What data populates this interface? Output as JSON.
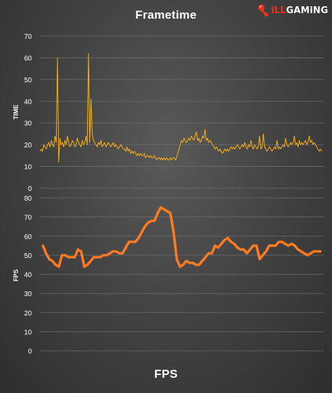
{
  "logo": {
    "accent": "iLL",
    "rest": "GAMiNG"
  },
  "colors": {
    "frametime_line": "#ffb400",
    "fps_line": "#ff7b22",
    "grid": "#6e6e6e",
    "tick_text": "#ffffff"
  },
  "chart_data": [
    {
      "type": "line",
      "title": "Frametime",
      "xlabel": "",
      "ylabel": "TIME",
      "ylim": [
        0,
        70
      ],
      "yticks": [
        0,
        10,
        20,
        30,
        40,
        50,
        60,
        70
      ],
      "grid": true,
      "legend": "none",
      "series": [
        {
          "values": [
            17,
            18,
            17,
            20,
            19,
            18,
            20,
            21,
            19,
            22,
            20,
            19,
            24,
            21,
            60,
            12,
            23,
            20,
            21,
            19,
            22,
            20,
            24,
            21,
            19,
            20,
            22,
            21,
            19,
            20,
            23,
            21,
            20,
            19,
            22,
            20,
            21,
            24,
            20,
            62,
            21,
            41,
            25,
            22,
            21,
            20,
            19,
            21,
            20,
            22,
            19,
            20,
            21,
            19,
            20,
            21,
            20,
            19,
            20,
            21,
            19,
            20,
            19,
            18,
            19,
            20,
            19,
            18,
            18,
            17,
            19,
            17,
            18,
            16,
            17,
            16,
            17,
            16,
            15,
            16,
            15,
            16,
            15,
            15,
            16,
            14,
            15,
            15,
            14,
            15,
            14,
            14,
            15,
            14,
            13,
            14,
            14,
            13,
            14,
            13,
            14,
            13,
            14,
            13,
            13,
            14,
            13,
            14,
            14,
            13,
            14,
            16,
            18,
            20,
            22,
            21,
            23,
            22,
            21,
            22,
            23,
            22,
            24,
            23,
            22,
            24,
            26,
            22,
            23,
            21,
            22,
            24,
            23,
            27,
            22,
            23,
            21,
            22,
            21,
            20,
            19,
            18,
            19,
            18,
            17,
            18,
            17,
            16,
            17,
            18,
            17,
            18,
            17,
            18,
            19,
            18,
            19,
            18,
            19,
            20,
            19,
            18,
            19,
            20,
            19,
            21,
            19,
            18,
            20,
            19,
            22,
            19,
            18,
            20,
            19,
            18,
            19,
            24,
            18,
            19,
            25,
            19,
            18,
            17,
            18,
            19,
            18,
            17,
            18,
            19,
            18,
            22,
            18,
            19,
            18,
            19,
            20,
            19,
            23,
            20,
            19,
            20,
            21,
            20,
            21,
            24,
            20,
            21,
            19,
            22,
            20,
            21,
            20,
            21,
            22,
            20,
            21,
            24,
            21,
            22,
            20,
            21,
            20,
            19,
            18,
            17,
            18,
            17
          ]
        }
      ]
    },
    {
      "type": "line",
      "title": "FPS",
      "xlabel": "",
      "ylabel": "FPS",
      "ylim": [
        0,
        80
      ],
      "yticks": [
        0,
        10,
        20,
        30,
        40,
        50,
        60,
        70,
        80
      ],
      "grid": true,
      "legend": "none",
      "series": [
        {
          "values": [
            55,
            51,
            48,
            47,
            45,
            44,
            50,
            50,
            49,
            49,
            49,
            53,
            52,
            44,
            45,
            47,
            49,
            49,
            49,
            50,
            50,
            51,
            52,
            52,
            51,
            51,
            54,
            57,
            57,
            57,
            59,
            62,
            65,
            67,
            68,
            68,
            72,
            75,
            74,
            73,
            72,
            62,
            48,
            44,
            45,
            47,
            46,
            46,
            45,
            45,
            47,
            49,
            51,
            51,
            55,
            54,
            56,
            58,
            59,
            57,
            56,
            54,
            53,
            53,
            51,
            53,
            55,
            55,
            48,
            50,
            52,
            55,
            55,
            55,
            57,
            57,
            56,
            55,
            56,
            55,
            53,
            52,
            51,
            50,
            51,
            52,
            52,
            52
          ]
        }
      ]
    }
  ]
}
